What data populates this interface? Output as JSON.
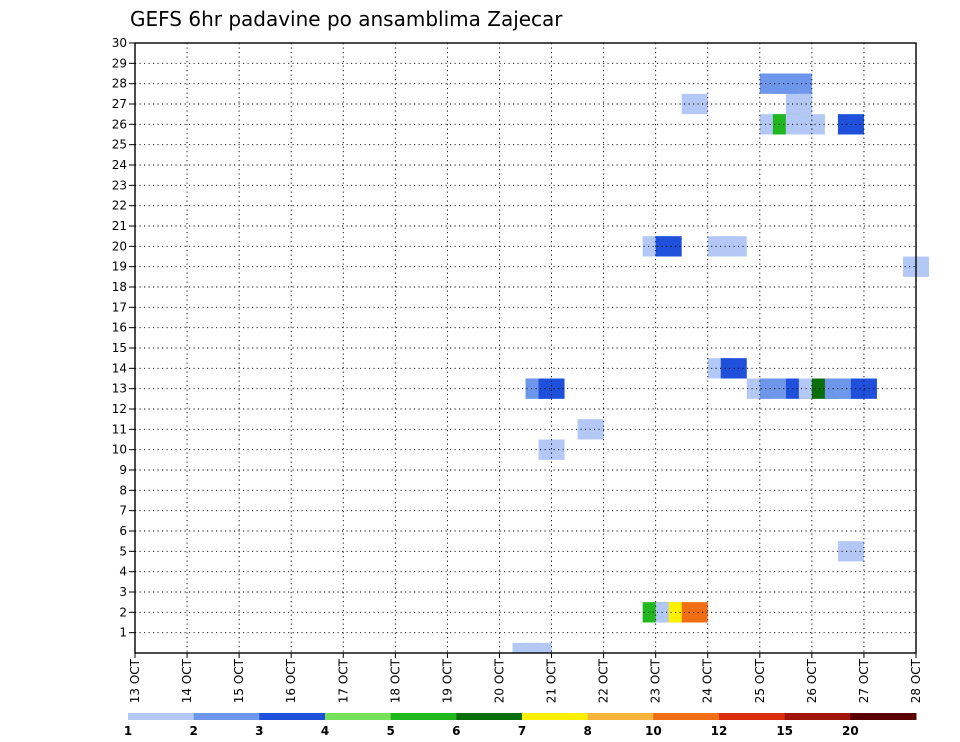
{
  "chart_data": {
    "type": "heatmap",
    "title": "GEFS 6hr padavine po ansamblima Zajecar",
    "y_ticks": [
      "1",
      "2",
      "3",
      "4",
      "5",
      "6",
      "7",
      "8",
      "9",
      "10",
      "11",
      "12",
      "13",
      "14",
      "15",
      "16",
      "17",
      "18",
      "19",
      "20",
      "21",
      "22",
      "23",
      "24",
      "25",
      "26",
      "27",
      "28",
      "29",
      "30"
    ],
    "ylim": [
      0,
      30
    ],
    "x_ticks": [
      "13 OCT",
      "14 OCT",
      "15 OCT",
      "16 OCT",
      "17 OCT",
      "18 OCT",
      "19 OCT",
      "20 OCT",
      "21 OCT",
      "22 OCT",
      "23 OCT",
      "24 OCT",
      "25 OCT",
      "26 OCT",
      "27 OCT",
      "28 OCT"
    ],
    "xlim": [
      "13 OCT 00h",
      "28 OCT 00h"
    ],
    "grid": true,
    "color_levels": [
      "1",
      "2",
      "3",
      "4",
      "5",
      "6",
      "7",
      "8",
      "10",
      "12",
      "15",
      "20"
    ],
    "colors": [
      "#b4c8f5",
      "#6e96eb",
      "#1e50dc",
      "#78e15a",
      "#20b81e",
      "#0a6e0a",
      "#fff000",
      "#fab43c",
      "#f06e14",
      "#dc2d0a",
      "#a0140a",
      "#5a0000"
    ],
    "cells": [
      {
        "date": "20 OCT 12h",
        "member": 0,
        "level": "1"
      },
      {
        "date": "20 OCT 18h",
        "member": 0,
        "level": "1"
      },
      {
        "date": "23 OCT 00h",
        "member": 2,
        "level": "5"
      },
      {
        "date": "23 OCT 06h",
        "member": 2,
        "level": "1"
      },
      {
        "date": "23 OCT 12h",
        "member": 2,
        "level": "7"
      },
      {
        "date": "23 OCT 18h",
        "member": 2,
        "level": "10"
      },
      {
        "date": "26 OCT 18h",
        "member": 5,
        "level": "1"
      },
      {
        "date": "21 OCT 00h",
        "member": 10,
        "level": "1"
      },
      {
        "date": "21 OCT 18h",
        "member": 11,
        "level": "1"
      },
      {
        "date": "20 OCT 18h",
        "member": 13,
        "level": "2"
      },
      {
        "date": "21 OCT 00h",
        "member": 13,
        "level": "3"
      },
      {
        "date": "25 OCT 00h",
        "member": 13,
        "level": "1"
      },
      {
        "date": "25 OCT 06h",
        "member": 13,
        "level": "2"
      },
      {
        "date": "25 OCT 18h",
        "member": 13,
        "level": "3"
      },
      {
        "date": "26 OCT 00h",
        "member": 13,
        "level": "1"
      },
      {
        "date": "26 OCT 06h",
        "member": 13,
        "level": "6"
      },
      {
        "date": "26 OCT 12h",
        "member": 13,
        "level": "2"
      },
      {
        "date": "26 OCT 18h",
        "member": 13,
        "level": "2"
      },
      {
        "date": "27 OCT 00h",
        "member": 13,
        "level": "3"
      },
      {
        "date": "24 OCT 06h",
        "member": 14,
        "level": "1"
      },
      {
        "date": "24 OCT 12h",
        "member": 14,
        "level": "3"
      },
      {
        "date": "28 OCT 00h",
        "member": 19,
        "level": "1"
      },
      {
        "date": "23 OCT 00h",
        "member": 20,
        "level": "1"
      },
      {
        "date": "23 OCT 06h",
        "member": 20,
        "level": "3"
      },
      {
        "date": "24 OCT 06h",
        "member": 20,
        "level": "1"
      },
      {
        "date": "24 OCT 12h",
        "member": 20,
        "level": "1"
      },
      {
        "date": "25 OCT 06h",
        "member": 26,
        "level": "1"
      },
      {
        "date": "25 OCT 12h",
        "member": 26,
        "level": "5"
      },
      {
        "date": "25 OCT 18h",
        "member": 26,
        "level": "1"
      },
      {
        "date": "26 OCT 00h",
        "member": 26,
        "level": "1"
      },
      {
        "date": "26 OCT 18h",
        "member": 26,
        "level": "3"
      },
      {
        "date": "23 OCT 18h",
        "member": 27,
        "level": "1"
      },
      {
        "date": "25 OCT 18h",
        "member": 27,
        "level": "1"
      },
      {
        "date": "25 OCT 06h",
        "member": 28,
        "level": "2"
      },
      {
        "date": "25 OCT 12h",
        "member": 28,
        "level": "2"
      },
      {
        "date": "25 OCT 18h",
        "member": 28,
        "level": "2"
      }
    ]
  }
}
